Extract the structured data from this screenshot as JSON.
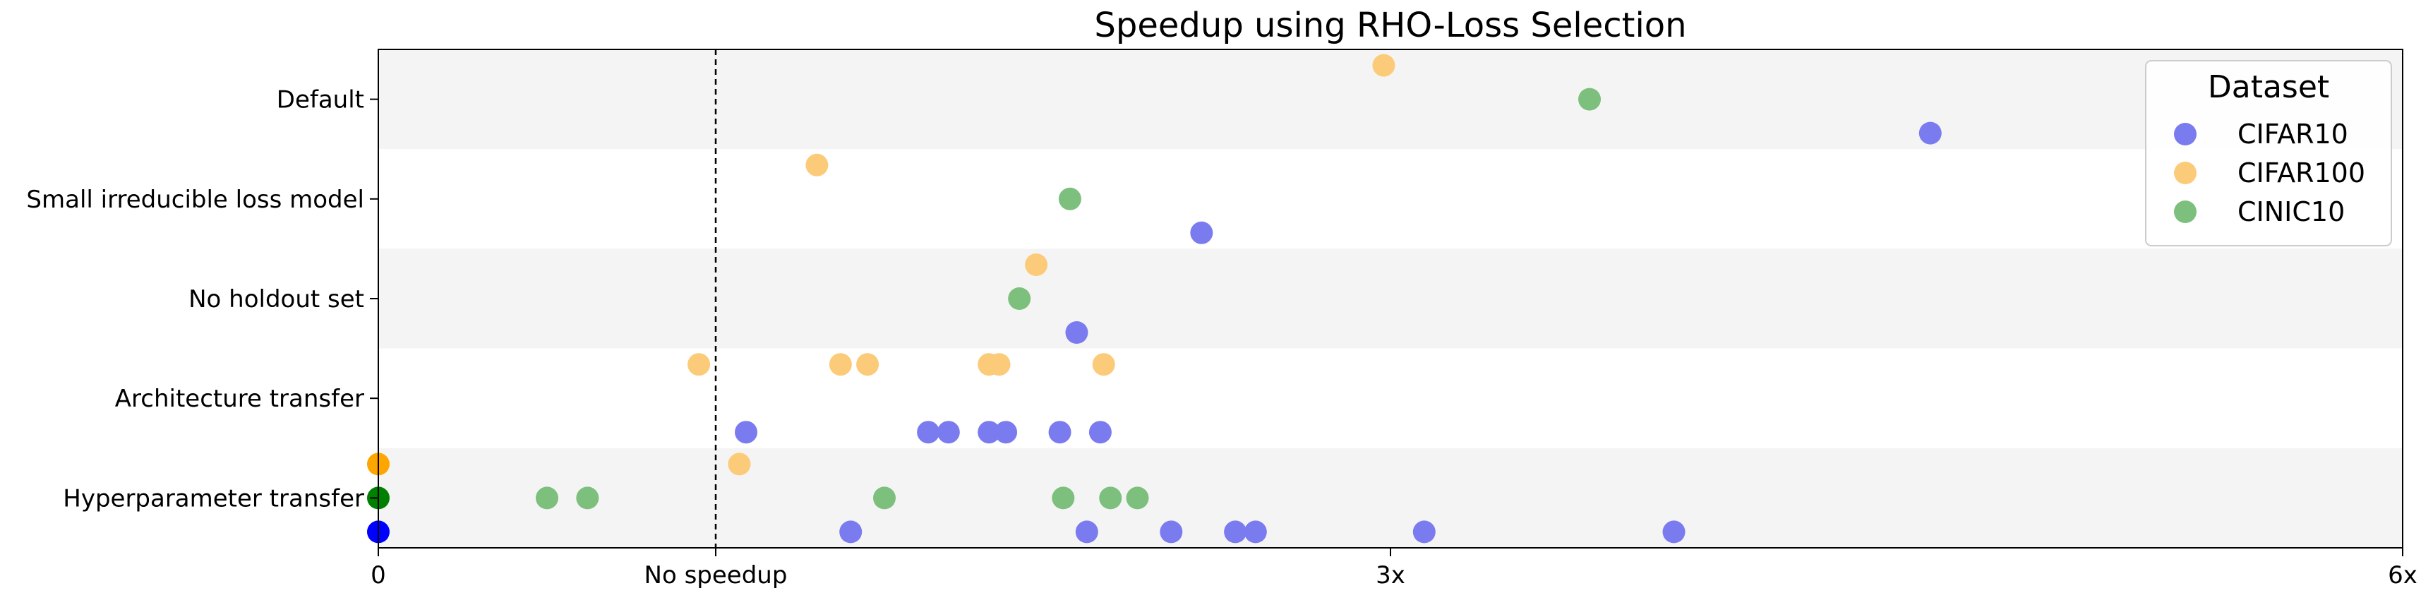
{
  "chart_data": {
    "type": "scatter",
    "title": "Speedup using RHO-Loss Selection",
    "xlabel": "",
    "ylabel": "",
    "xlim": [
      0,
      6
    ],
    "x_ticks": [
      {
        "value": 0,
        "label": "0"
      },
      {
        "value": 1,
        "label": "No speedup"
      },
      {
        "value": 3,
        "label": "3x"
      },
      {
        "value": 6,
        "label": "6x"
      }
    ],
    "reference_line": {
      "x": 1,
      "style": "dashed"
    },
    "categories": [
      "Default",
      "Small irreducible loss model",
      "No holdout set",
      "Architecture transfer",
      "Hyperparameter transfer"
    ],
    "band_colors": [
      "#f4f4f4",
      "#ffffff"
    ],
    "legend": {
      "title": "Dataset",
      "position": "top-right"
    },
    "series": [
      {
        "name": "CIFAR10",
        "color": "#7b7bf0",
        "edge_color": "#0000ff",
        "offset": 1,
        "points": [
          {
            "category": "Default",
            "x": [
              4.6
            ]
          },
          {
            "category": "Small irreducible loss model",
            "x": [
              2.44
            ]
          },
          {
            "category": "No holdout set",
            "x": [
              2.07
            ]
          },
          {
            "category": "Architecture transfer",
            "x": [
              1.09,
              1.63,
              1.69,
              1.81,
              1.86,
              2.02,
              2.14
            ]
          },
          {
            "category": "Hyperparameter transfer",
            "x": [
              0,
              1.4,
              2.1,
              2.35,
              2.54,
              2.6,
              3.1,
              3.84
            ]
          }
        ]
      },
      {
        "name": "CIFAR100",
        "color": "#fccb79",
        "edge_color": "#ffa500",
        "offset": -1,
        "points": [
          {
            "category": "Default",
            "x": [
              2.98
            ]
          },
          {
            "category": "Small irreducible loss model",
            "x": [
              1.3
            ]
          },
          {
            "category": "No holdout set",
            "x": [
              1.95
            ]
          },
          {
            "category": "Architecture transfer",
            "x": [
              0.95,
              1.37,
              1.45,
              1.81,
              1.84,
              2.15
            ]
          },
          {
            "category": "Hyperparameter transfer",
            "x": [
              0,
              1.07
            ]
          }
        ]
      },
      {
        "name": "CINIC10",
        "color": "#7dbf7d",
        "edge_color": "#008000",
        "offset": 0,
        "points": [
          {
            "category": "Default",
            "x": [
              3.59
            ]
          },
          {
            "category": "Small irreducible loss model",
            "x": [
              2.05
            ]
          },
          {
            "category": "No holdout set",
            "x": [
              1.9
            ]
          },
          {
            "category": "Architecture transfer",
            "x": []
          },
          {
            "category": "Hyperparameter transfer",
            "x": [
              0,
              0.5,
              0.62,
              1.5,
              2.03,
              2.17,
              2.25
            ]
          }
        ]
      }
    ]
  }
}
